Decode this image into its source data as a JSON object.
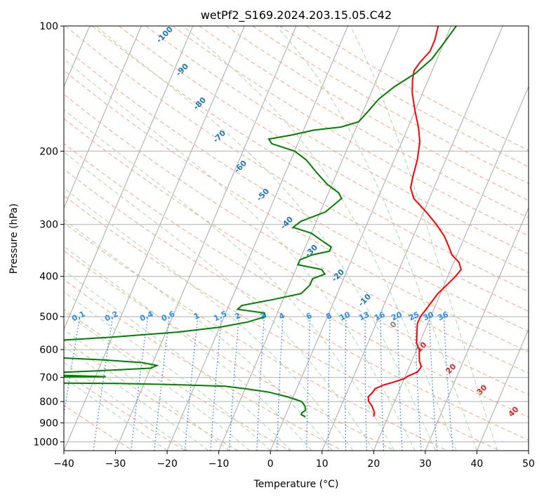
{
  "chart_data": {
    "type": "line",
    "subtype": "skew-t log-p diagram",
    "title": "wetPf2_S169.2024.203.15.05.C42",
    "xlabel": "Temperature (°C)",
    "ylabel": "Pressure (hPa)",
    "xlim": [
      -40,
      50
    ],
    "ylim": [
      1050,
      100
    ],
    "y_scale": "log",
    "grid": true,
    "x_ticks": [
      "−40",
      "−30",
      "−20",
      "−10",
      "0",
      "10",
      "20",
      "30",
      "40",
      "50"
    ],
    "y_ticks": [
      "100",
      "200",
      "300",
      "400",
      "500",
      "600",
      "700",
      "800",
      "900",
      "1000"
    ],
    "colors": {
      "temperature": "#ff0000",
      "dewpoint": "#008000",
      "isotherm": "#999999",
      "dry_adiabat": "#f4a582",
      "moist_adiabat": "#a6d9a6",
      "mixing_ratio": "#1f77e8",
      "dry_label": "#1f77b4",
      "moist_label": "#d62728"
    },
    "series": [
      {
        "key": "temperature",
        "points": [
          [
            870,
            17.2
          ],
          [
            850,
            17
          ],
          [
            820,
            16
          ],
          [
            800,
            15
          ],
          [
            780,
            14.5
          ],
          [
            760,
            15
          ],
          [
            745,
            15.2
          ],
          [
            730,
            16.5
          ],
          [
            720,
            18
          ],
          [
            705,
            20
          ],
          [
            695,
            20.5
          ],
          [
            680,
            22
          ],
          [
            660,
            22.3
          ],
          [
            640,
            21.5
          ],
          [
            620,
            21
          ],
          [
            600,
            20.5
          ],
          [
            580,
            19.5
          ],
          [
            560,
            19
          ],
          [
            540,
            18.5
          ],
          [
            520,
            18
          ],
          [
            500,
            18
          ],
          [
            480,
            18.5
          ],
          [
            460,
            19
          ],
          [
            440,
            19.5
          ],
          [
            420,
            20.5
          ],
          [
            400,
            21.5
          ],
          [
            385,
            22
          ],
          [
            370,
            21
          ],
          [
            355,
            19
          ],
          [
            340,
            17.8
          ],
          [
            320,
            16
          ],
          [
            300,
            13.5
          ],
          [
            280,
            10.5
          ],
          [
            260,
            7
          ],
          [
            245,
            5.5
          ],
          [
            230,
            5
          ],
          [
            210,
            4.5
          ],
          [
            190,
            3.5
          ],
          [
            175,
            2
          ],
          [
            160,
            0
          ],
          [
            145,
            -2
          ],
          [
            135,
            -3
          ],
          [
            128,
            -3.5
          ],
          [
            122,
            -3
          ],
          [
            115,
            -2
          ],
          [
            108,
            -2
          ],
          [
            100,
            -2.5
          ]
        ]
      },
      {
        "key": "dewpoint",
        "points": [
          [
            870,
            4
          ],
          [
            860,
            3
          ],
          [
            850,
            3
          ],
          [
            840,
            3.5
          ],
          [
            820,
            3
          ],
          [
            800,
            2
          ],
          [
            780,
            -1
          ],
          [
            760,
            -5
          ],
          [
            745,
            -10
          ],
          [
            735,
            -14
          ],
          [
            728,
            -25
          ],
          [
            724,
            -35
          ],
          [
            720,
            -60
          ],
          [
            700,
            -60
          ],
          [
            697,
            -38
          ],
          [
            693,
            -44
          ],
          [
            688,
            -55
          ],
          [
            683,
            -50
          ],
          [
            675,
            -40
          ],
          [
            665,
            -30
          ],
          [
            655,
            -29
          ],
          [
            645,
            -32
          ],
          [
            635,
            -40
          ],
          [
            625,
            -52
          ],
          [
            612,
            -70
          ],
          [
            580,
            -60
          ],
          [
            560,
            -40
          ],
          [
            545,
            -28
          ],
          [
            530,
            -20
          ],
          [
            515,
            -15
          ],
          [
            500,
            -12
          ],
          [
            490,
            -12.5
          ],
          [
            480,
            -18
          ],
          [
            470,
            -17.5
          ],
          [
            455,
            -12
          ],
          [
            440,
            -7
          ],
          [
            420,
            -6
          ],
          [
            405,
            -6
          ],
          [
            395,
            -4
          ],
          [
            385,
            -5
          ],
          [
            375,
            -10
          ],
          [
            365,
            -10
          ],
          [
            355,
            -8
          ],
          [
            348,
            -5
          ],
          [
            340,
            -5
          ],
          [
            330,
            -7
          ],
          [
            315,
            -10
          ],
          [
            305,
            -14
          ],
          [
            295,
            -13
          ],
          [
            280,
            -9
          ],
          [
            260,
            -7
          ],
          [
            252,
            -8
          ],
          [
            240,
            -11
          ],
          [
            225,
            -14
          ],
          [
            210,
            -17
          ],
          [
            200,
            -20
          ],
          [
            192,
            -25
          ],
          [
            187,
            -26
          ],
          [
            183,
            -22
          ],
          [
            178,
            -18
          ],
          [
            175,
            -13
          ],
          [
            170,
            -10
          ],
          [
            160,
            -9
          ],
          [
            150,
            -8
          ],
          [
            140,
            -6
          ],
          [
            130,
            -3
          ],
          [
            120,
            -1
          ],
          [
            110,
            0
          ],
          [
            100,
            1
          ]
        ]
      }
    ],
    "dry_adiabat_labels": [
      "-100",
      "-90",
      "-80",
      "-70",
      "-60",
      "-50",
      "-40",
      "-30",
      "-20",
      "-10"
    ],
    "moist_adiabat_labels": [
      "0",
      "10",
      "20",
      "30",
      "40"
    ],
    "mixing_ratio_labels": [
      "0.1",
      "0.2",
      "0.4",
      "0.6",
      "1",
      "1.5",
      "2",
      "3",
      "4",
      "6",
      "8",
      "10",
      "13",
      "16",
      "20",
      "25",
      "30",
      "36"
    ]
  }
}
